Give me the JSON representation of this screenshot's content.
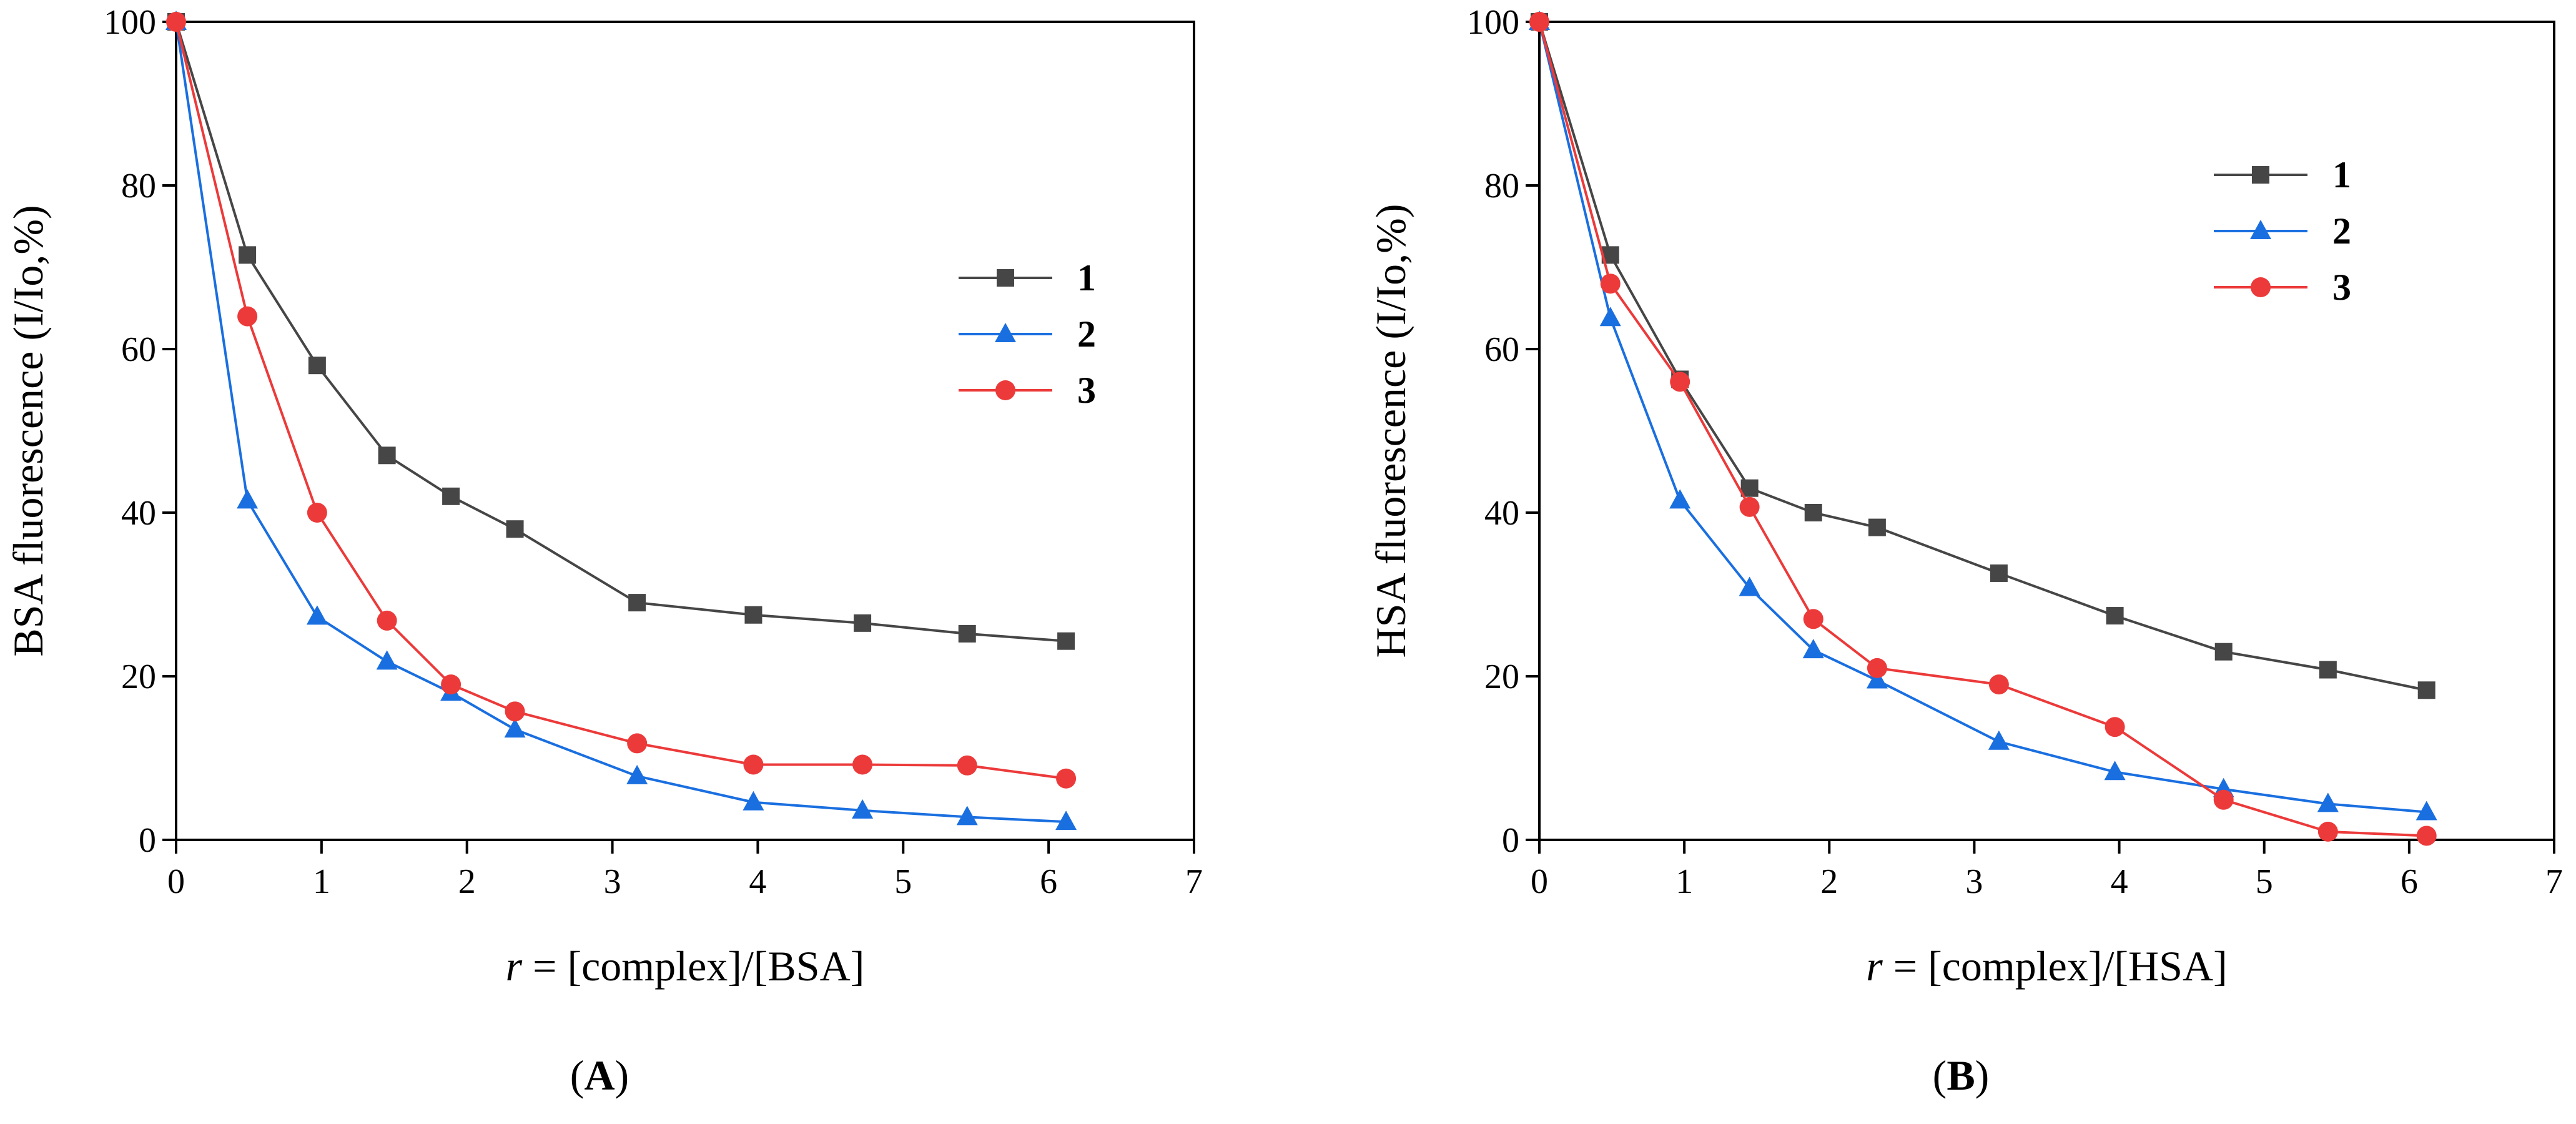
{
  "panels": [
    {
      "label_open": "(",
      "label_letter": "A",
      "label_close": ")"
    },
    {
      "label_open": "(",
      "label_letter": "B",
      "label_close": ")"
    }
  ],
  "colors": {
    "series_1": "#464646",
    "series_2": "#1a6fe0",
    "series_3": "#ec3a3a"
  },
  "chart_data": [
    {
      "type": "line",
      "title": "",
      "ylabel": "BSA fluorescence (I/Io,%)",
      "xlabel_var": "r",
      "xlabel_rest": " = [complex]/[BSA]",
      "xlim": [
        0,
        7
      ],
      "ylim": [
        0,
        100
      ],
      "xticks": [
        0,
        1,
        2,
        3,
        4,
        5,
        6,
        7
      ],
      "yticks": [
        0,
        20,
        40,
        60,
        80,
        100
      ],
      "grid": false,
      "legend_position": "right",
      "series": [
        {
          "name": "1",
          "marker": "square",
          "color": "#464646",
          "x": [
            0,
            0.49,
            0.97,
            1.45,
            1.89,
            2.33,
            3.17,
            3.97,
            4.72,
            5.44,
            6.12
          ],
          "y": [
            100,
            71.5,
            58,
            47,
            42,
            38,
            29,
            27.5,
            26.5,
            25.2,
            24.3
          ]
        },
        {
          "name": "2",
          "marker": "triangle",
          "color": "#1a6fe0",
          "x": [
            0,
            0.49,
            0.97,
            1.45,
            1.89,
            2.33,
            3.17,
            3.97,
            4.72,
            5.44,
            6.12
          ],
          "y": [
            100,
            41.5,
            27.3,
            21.8,
            18,
            13.5,
            7.8,
            4.6,
            3.6,
            2.8,
            2.2
          ]
        },
        {
          "name": "3",
          "marker": "circle",
          "color": "#ec3a3a",
          "x": [
            0,
            0.49,
            0.97,
            1.45,
            1.89,
            2.33,
            3.17,
            3.97,
            4.72,
            5.44,
            6.12
          ],
          "y": [
            100,
            64,
            40,
            26.8,
            19,
            15.7,
            11.8,
            9.2,
            9.2,
            9.1,
            7.5
          ]
        }
      ]
    },
    {
      "type": "line",
      "title": "",
      "ylabel": "HSA fluorescence (I/Io,%)",
      "xlabel_var": "r",
      "xlabel_rest": " = [complex]/[HSA]",
      "xlim": [
        0,
        7
      ],
      "ylim": [
        0,
        100
      ],
      "xticks": [
        0,
        1,
        2,
        3,
        4,
        5,
        6,
        7
      ],
      "yticks": [
        0,
        20,
        40,
        60,
        80,
        100
      ],
      "grid": false,
      "legend_position": "top-right",
      "series": [
        {
          "name": "1",
          "marker": "square",
          "color": "#464646",
          "x": [
            0,
            0.49,
            0.97,
            1.45,
            1.89,
            2.33,
            3.17,
            3.97,
            4.72,
            5.44,
            6.12
          ],
          "y": [
            100,
            71.5,
            56.3,
            43,
            40,
            38.2,
            32.6,
            27.4,
            23,
            20.8,
            18.3
          ]
        },
        {
          "name": "2",
          "marker": "triangle",
          "color": "#1a6fe0",
          "x": [
            0,
            0.49,
            0.97,
            1.45,
            1.89,
            2.33,
            3.17,
            3.97,
            4.72,
            5.44,
            6.12
          ],
          "y": [
            100,
            63.8,
            41.5,
            30.8,
            23.2,
            19.5,
            12,
            8.3,
            6.2,
            4.4,
            3.4
          ]
        },
        {
          "name": "3",
          "marker": "circle",
          "color": "#ec3a3a",
          "x": [
            0,
            0.49,
            0.97,
            1.45,
            1.89,
            2.33,
            3.17,
            3.97,
            4.72,
            5.44,
            6.12
          ],
          "y": [
            100,
            68,
            56,
            40.7,
            27,
            21,
            19,
            13.8,
            4.9,
            1.0,
            0.5
          ]
        }
      ]
    }
  ]
}
